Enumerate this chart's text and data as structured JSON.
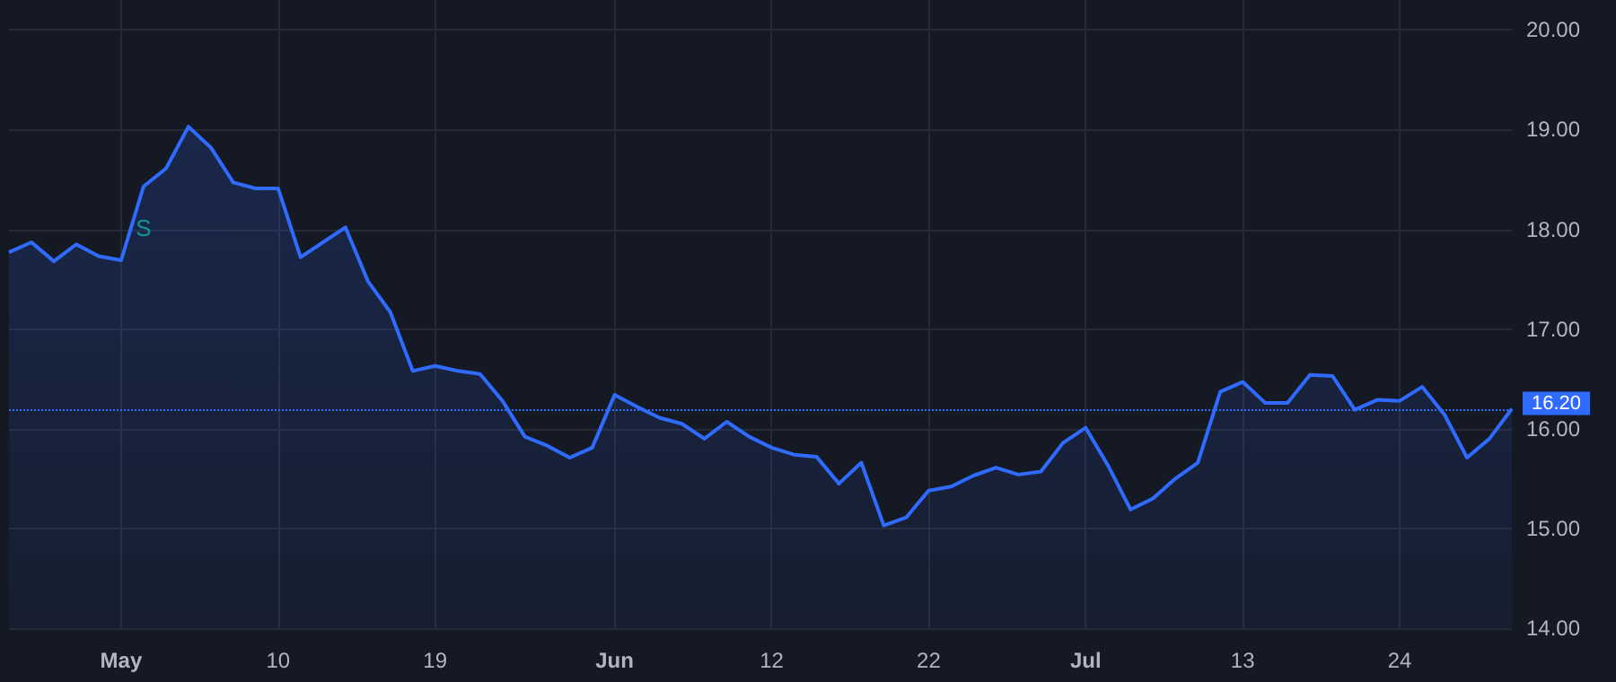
{
  "chart_data": {
    "type": "area",
    "categories": [
      null,
      null,
      null,
      null,
      null,
      "May",
      null,
      null,
      null,
      null,
      null,
      null,
      "10",
      null,
      null,
      null,
      null,
      null,
      null,
      "19",
      null,
      null,
      null,
      null,
      null,
      null,
      null,
      "Jun",
      null,
      null,
      null,
      null,
      null,
      null,
      "12",
      null,
      null,
      null,
      null,
      null,
      null,
      "22",
      null,
      null,
      null,
      null,
      null,
      null,
      "Jul",
      null,
      null,
      null,
      null,
      null,
      null,
      "13",
      null,
      null,
      null,
      null,
      null,
      null,
      "24",
      null,
      null,
      null,
      null,
      null
    ],
    "series": [
      {
        "color": "#2f6bff",
        "values": [
          17.77,
          17.87,
          17.68,
          17.85,
          17.73,
          17.69,
          18.43,
          18.61,
          19.03,
          18.82,
          18.47,
          18.41,
          18.41,
          17.72,
          17.87,
          18.02,
          17.48,
          17.17,
          16.58,
          16.63,
          16.58,
          16.55,
          16.28,
          15.92,
          15.83,
          15.71,
          15.81,
          16.34,
          16.22,
          16.11,
          16.05,
          15.9,
          16.07,
          15.92,
          15.81,
          15.74,
          15.72,
          15.45,
          15.66,
          15.03,
          15.11,
          15.38,
          15.42,
          15.53,
          15.61,
          15.54,
          15.57,
          15.86,
          16.01,
          15.63,
          15.19,
          15.3,
          15.5,
          15.66,
          16.37,
          16.47,
          16.26,
          16.26,
          16.54,
          16.53,
          16.19,
          16.29,
          16.28,
          16.42,
          16.14,
          15.71,
          15.9,
          16.2
        ]
      }
    ],
    "ylim": [
      14,
      20.3
    ],
    "yticks": [
      {
        "value": 14,
        "label": "14.00"
      },
      {
        "value": 15,
        "label": "15.00"
      },
      {
        "value": 16,
        "label": "16.00"
      },
      {
        "value": 17,
        "label": "17.00"
      },
      {
        "value": 18,
        "label": "18.00"
      },
      {
        "value": 19,
        "label": "19.00"
      },
      {
        "value": 20,
        "label": "20.00"
      }
    ],
    "ref_lines": [
      {
        "axis": "y",
        "value": 16.2,
        "label": "16.20",
        "color": "#2f6bff",
        "line_style": "dotted"
      }
    ],
    "annotations": [
      "S"
    ],
    "grid": true,
    "marker": "none",
    "line_style": "solid"
  }
}
